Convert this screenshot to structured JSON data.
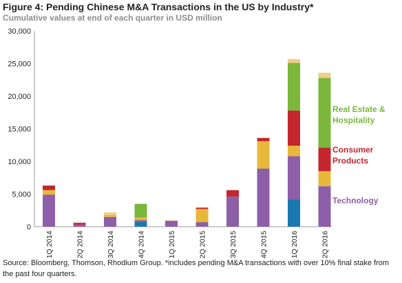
{
  "chart_data": {
    "type": "bar",
    "stacked": true,
    "title": "Figure 4: Pending Chinese M&A Transactions in the US by Industry*",
    "subtitle": "Cumulative values at end of each quarter in USD million",
    "source": "Source: Bloomberg, Thomson, Rhodium Group. *includes pending M&A transactions with over 10% final stake from the past four quarters.",
    "categories": [
      "1Q 2014",
      "2Q 2014",
      "3Q 2014",
      "4Q 2014",
      "1Q 2015",
      "2Q 2015",
      "3Q 2015",
      "4Q 2015",
      "1Q 2016",
      "2Q 2016"
    ],
    "ylim": [
      0,
      30000
    ],
    "yticks": [
      "0",
      "5,000",
      "10,000",
      "15,000",
      "20,000",
      "25,000",
      "30,000"
    ],
    "ytick_values": [
      0,
      5000,
      10000,
      15000,
      20000,
      25000,
      30000
    ],
    "series": [
      {
        "key": "blue",
        "color": "#1a78b0",
        "values": [
          0,
          0,
          0,
          800,
          0,
          0,
          0,
          0,
          4200,
          0
        ]
      },
      {
        "name": "Technology",
        "key": "purple",
        "color": "#8c5fa8",
        "values": [
          4900,
          300,
          1500,
          200,
          800,
          700,
          4600,
          8900,
          6600,
          6200
        ]
      },
      {
        "key": "yellow",
        "color": "#e8b83a",
        "values": [
          700,
          0,
          300,
          400,
          0,
          2000,
          0,
          4200,
          1600,
          2300
        ]
      },
      {
        "name": "Consumer Products",
        "key": "red",
        "color": "#c4262e",
        "values": [
          700,
          300,
          0,
          0,
          100,
          200,
          1000,
          500,
          5400,
          3600
        ]
      },
      {
        "name": "Real Estate & Hospitality",
        "key": "green",
        "color": "#7ab73b",
        "values": [
          0,
          0,
          0,
          2100,
          0,
          0,
          0,
          0,
          7300,
          10700
        ]
      },
      {
        "key": "tan",
        "color": "#f1cd8c",
        "values": [
          0,
          0,
          400,
          0,
          0,
          100,
          0,
          0,
          600,
          800
        ]
      }
    ],
    "grid": false,
    "legend_placement": "right"
  },
  "legend": {
    "real_estate": "Real Estate & Hospitality",
    "consumer": "Consumer Products",
    "technology": "Technology"
  }
}
